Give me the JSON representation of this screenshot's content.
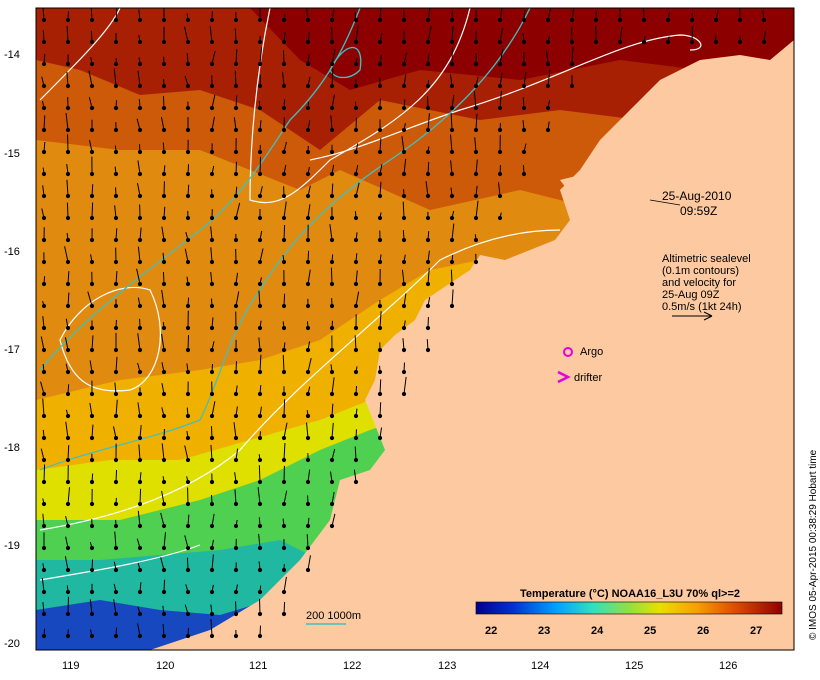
{
  "map": {
    "lat_ticks": [
      "-14",
      "-15",
      "-16",
      "-17",
      "-18",
      "-19",
      "-20"
    ],
    "lon_ticks": [
      "119",
      "120",
      "121",
      "122",
      "123",
      "124",
      "125",
      "126"
    ],
    "timestamp_line1": "25-Aug-2010",
    "timestamp_line2": "09:59Z",
    "legend_text": [
      "Altimetric sealevel",
      "(0.1m contours)",
      "and velocity for",
      "25-Aug 09Z",
      "0.5m/s (1kt 24h)"
    ],
    "argo_label": "Argo",
    "drifter_label": "drifter",
    "isobath_label": "200  1000m",
    "colorbar_title": "Temperature (°C) NOAA16_L3U 70% ql>=2",
    "colorbar_ticks": [
      "22",
      "23",
      "24",
      "25",
      "26",
      "27"
    ],
    "credit": "© IMOS 05-Apr-2015 00:38:29 Hobart time",
    "colors": {
      "land": "#fdc9a0",
      "argo": "#e000e0",
      "drifter": "#e000e0",
      "isobath": "#40c0c0",
      "contour": "#ffffff"
    }
  }
}
